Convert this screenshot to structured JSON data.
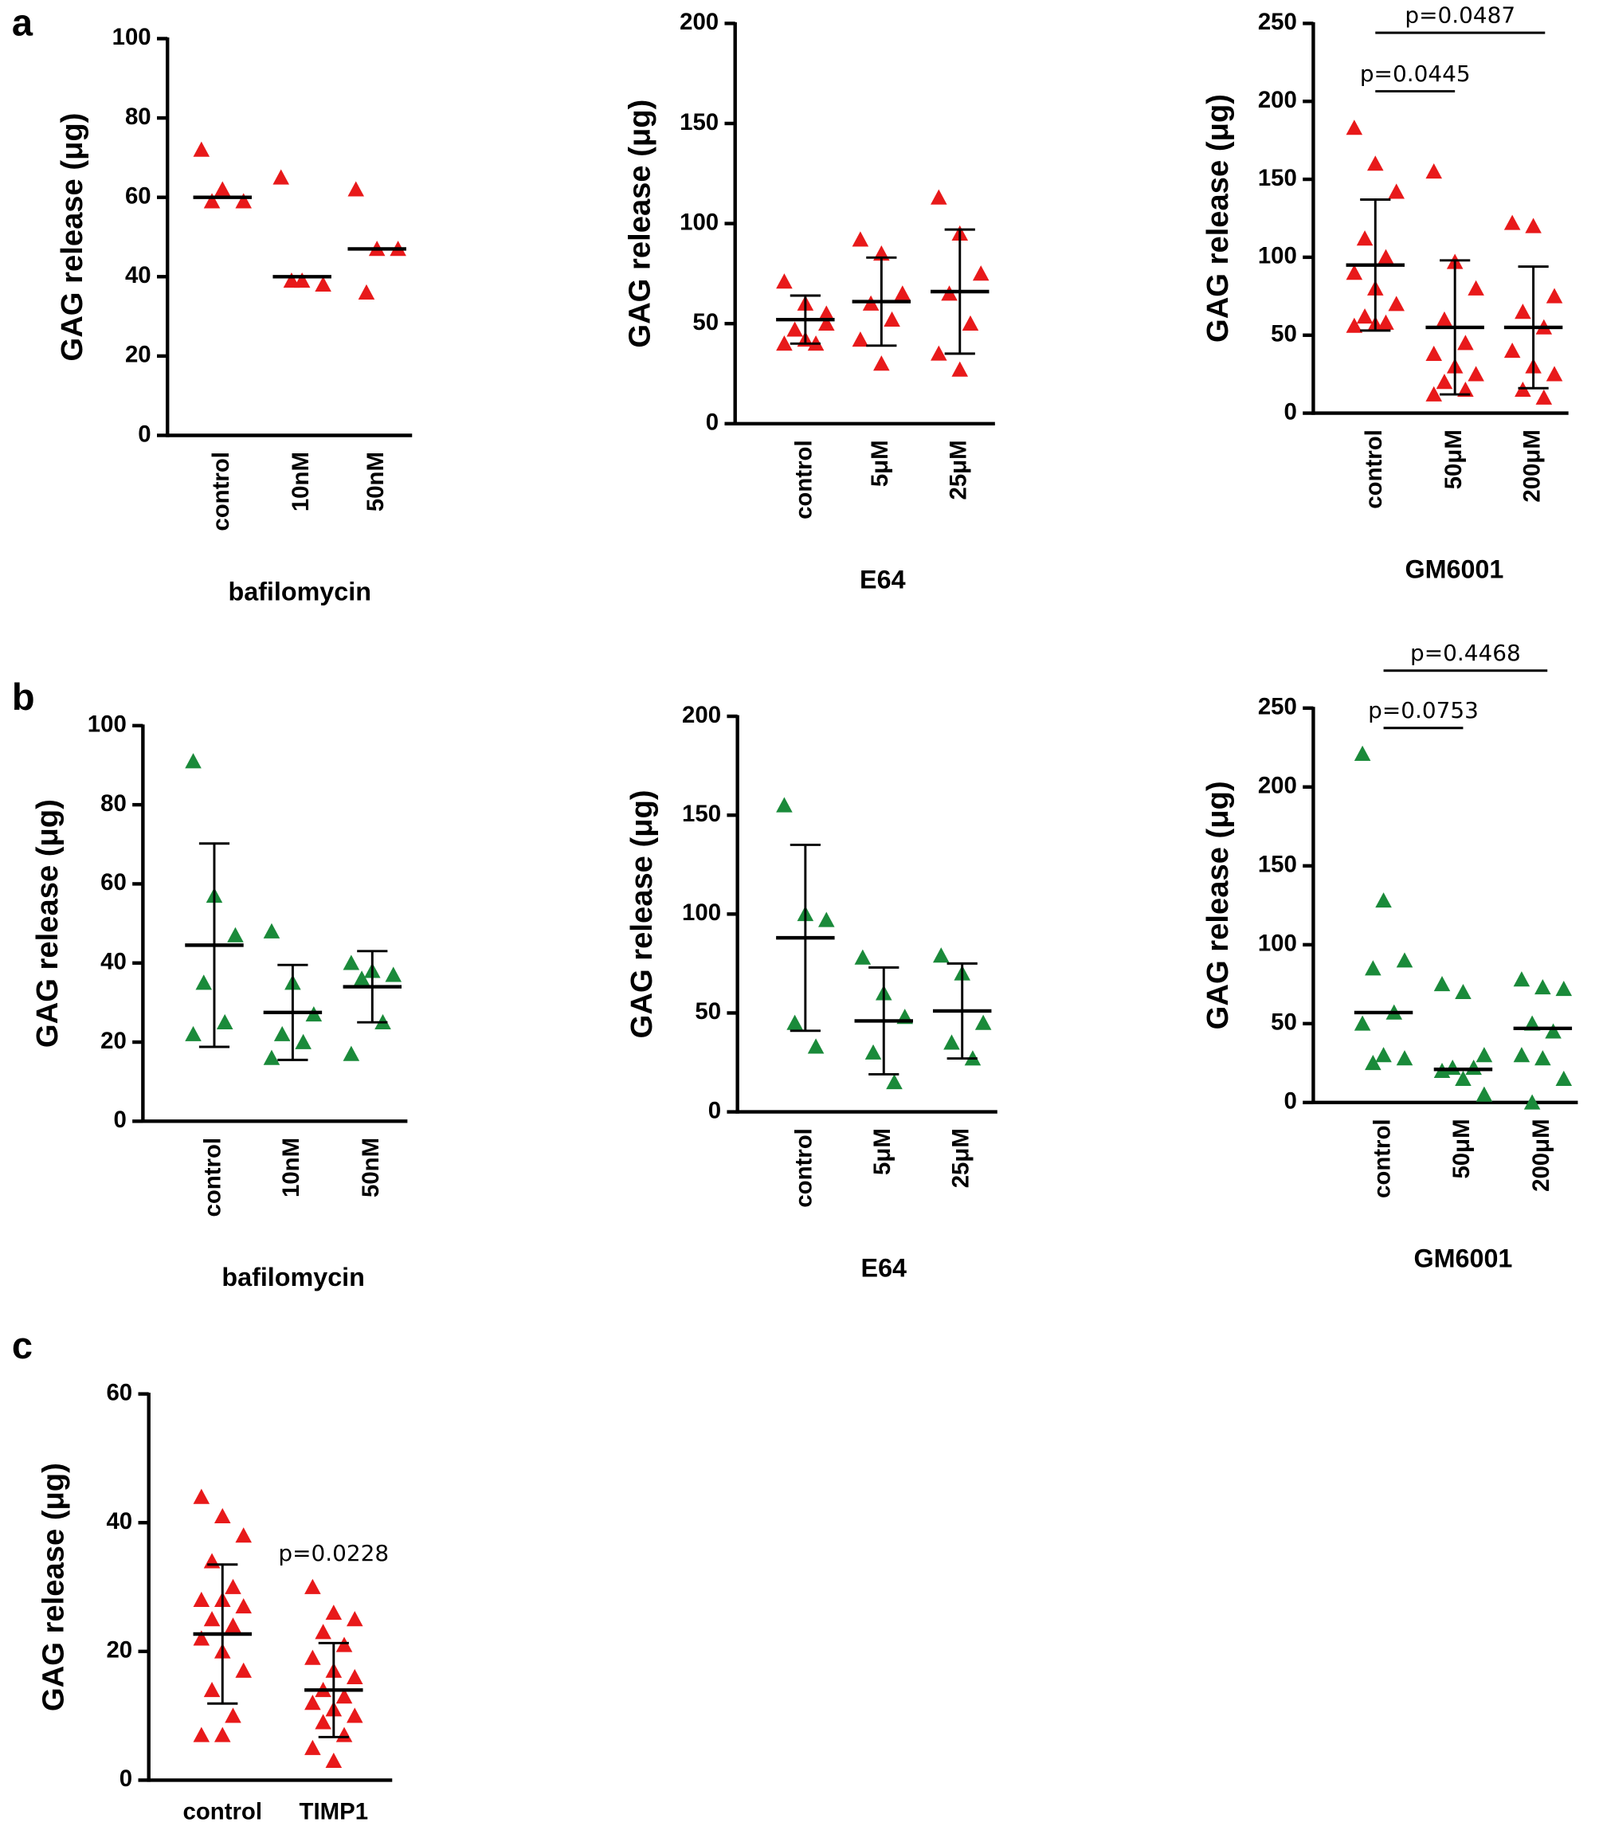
{
  "panels": [
    "a",
    "b",
    "c"
  ],
  "chart_data": [
    {
      "type": "scatter",
      "y_label": "GAG release (μg)",
      "x_label": "bafilomycin",
      "color": "#e8191a",
      "categories": [
        "control",
        "10nM",
        "50nM"
      ],
      "ylim": [
        0,
        100
      ],
      "yticks": [
        0,
        20,
        40,
        60,
        80,
        100
      ],
      "points": [
        [
          72,
          62,
          59,
          59
        ],
        [
          65,
          39,
          38,
          39
        ],
        [
          62,
          47,
          47,
          36
        ]
      ],
      "means": [
        60,
        40,
        47
      ]
    },
    {
      "type": "scatter",
      "y_label": "GAG release (μg)",
      "x_label": "E64",
      "color": "#e8191a",
      "categories": [
        "control",
        "5μM",
        "25μM"
      ],
      "ylim": [
        0,
        200
      ],
      "yticks": [
        0,
        50,
        100,
        150,
        200
      ],
      "points": [
        [
          71,
          60,
          50,
          47,
          40,
          40,
          42,
          55
        ],
        [
          92,
          85,
          65,
          60,
          52,
          42,
          30
        ],
        [
          113,
          95,
          75,
          65,
          50,
          35,
          27
        ]
      ],
      "means": [
        52,
        61,
        66
      ],
      "errors": [
        12,
        22,
        31
      ]
    },
    {
      "type": "scatter",
      "y_label": "GAG release (μg)",
      "x_label": "GM6001",
      "color": "#e8191a",
      "categories": [
        "control",
        "50μM",
        "200μM"
      ],
      "ylim": [
        0,
        250
      ],
      "yticks": [
        0,
        50,
        100,
        150,
        200,
        250
      ],
      "points": [
        [
          183,
          160,
          142,
          112,
          100,
          90,
          80,
          70,
          62,
          58,
          56,
          57
        ],
        [
          155,
          97,
          80,
          60,
          45,
          38,
          30,
          25,
          20,
          15,
          12
        ],
        [
          122,
          120,
          75,
          65,
          55,
          40,
          30,
          25,
          15,
          10
        ]
      ],
      "means": [
        95,
        55,
        55
      ],
      "errors": [
        42,
        43,
        39
      ],
      "annotations": [
        "p=0.0445",
        "p=0.0487"
      ]
    },
    {
      "type": "scatter",
      "y_label": "GAG release (μg)",
      "x_label": "bafilomycin",
      "color": "#1a8a3a",
      "categories": [
        "control",
        "10nM",
        "50nM"
      ],
      "ylim": [
        0,
        100
      ],
      "yticks": [
        0,
        20,
        40,
        60,
        80,
        100
      ],
      "points": [
        [
          91,
          57,
          47,
          35,
          25,
          22
        ],
        [
          48,
          35,
          27,
          22,
          20,
          16
        ],
        [
          40,
          38,
          37,
          36,
          25,
          17
        ]
      ],
      "means": [
        44.5,
        27.5,
        34
      ],
      "errors": [
        25.7,
        12,
        9
      ]
    },
    {
      "type": "scatter",
      "y_label": "GAG release (μg)",
      "x_label": "E64",
      "color": "#1a8a3a",
      "categories": [
        "control",
        "5μM",
        "25μM"
      ],
      "ylim": [
        0,
        200
      ],
      "yticks": [
        0,
        50,
        100,
        150,
        200
      ],
      "points": [
        [
          155,
          100,
          97,
          45,
          33
        ],
        [
          78,
          60,
          48,
          30,
          15
        ],
        [
          79,
          70,
          45,
          35,
          27
        ]
      ],
      "means": [
        88,
        46,
        51
      ],
      "errors": [
        47,
        27,
        24
      ]
    },
    {
      "type": "scatter",
      "y_label": "GAG release (μg)",
      "x_label": "GM6001",
      "color": "#1a8a3a",
      "categories": [
        "control",
        "50μM",
        "200μM"
      ],
      "ylim": [
        0,
        250
      ],
      "yticks": [
        0,
        50,
        100,
        150,
        200,
        250
      ],
      "points": [
        [
          221,
          128,
          90,
          85,
          57,
          50,
          30,
          28,
          25
        ],
        [
          75,
          70,
          30,
          22,
          22,
          20,
          15,
          5
        ],
        [
          78,
          73,
          72,
          50,
          45,
          30,
          28,
          15,
          0
        ]
      ],
      "means": [
        57,
        21,
        47
      ],
      "annotations": [
        "p=0.0753",
        "p=0.4468"
      ]
    },
    {
      "type": "scatter",
      "y_label": "GAG release (μg)",
      "color": "#e8191a",
      "categories": [
        "control",
        "TIMP1"
      ],
      "ylim": [
        0,
        60
      ],
      "yticks": [
        0,
        20,
        40,
        60
      ],
      "points": [
        [
          44,
          41,
          38,
          34,
          30,
          28,
          28,
          27,
          25,
          24,
          22,
          20,
          17,
          14,
          10,
          7,
          7
        ],
        [
          30,
          26,
          25,
          23,
          21,
          19,
          17,
          16,
          14,
          13,
          12,
          11,
          10,
          9,
          7,
          5,
          3
        ]
      ],
      "means": [
        22.7,
        14
      ],
      "errors": [
        10.8,
        7.3
      ],
      "annotations": [
        "p=0.0228"
      ]
    }
  ]
}
